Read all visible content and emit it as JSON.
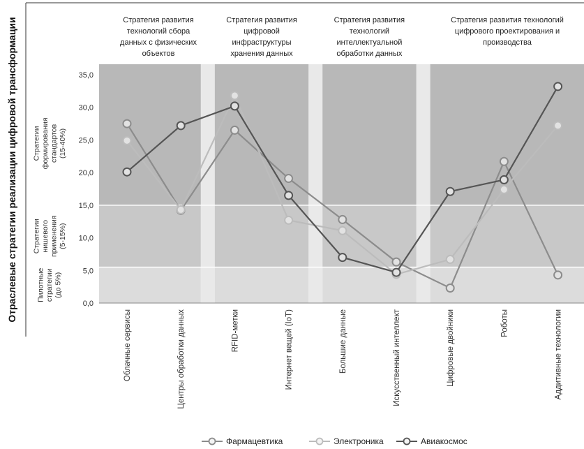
{
  "chart_data": {
    "type": "line",
    "vertical_title": "Отраслевые стратегии реализации цифровой трансформации",
    "categories": [
      "Облачные сервисы",
      "Центры обработки данных",
      "RFID-метки",
      "Интернет вещей (IoT)",
      "Большие данные",
      "Искусственный интеллект",
      "Цифровые двойники",
      "Роботы",
      "Аддитивные технологии"
    ],
    "category_groups": [
      {
        "label_lines": [
          "Стратегия развития",
          "технологий сбора",
          "данных с физических",
          "объектов"
        ],
        "categories": [
          0,
          1
        ]
      },
      {
        "label_lines": [
          "Стратегия развития",
          "цифровой",
          "инфраструктуры",
          "хранения данных"
        ],
        "categories": [
          2,
          3
        ]
      },
      {
        "label_lines": [
          "Стратегия развития",
          "технологий",
          "интеллектуальной",
          "обработки данных"
        ],
        "categories": [
          4,
          5
        ]
      },
      {
        "label_lines": [
          "Стратегия развития технологий",
          "цифрового проектирования и",
          "производства"
        ],
        "categories": [
          6,
          7,
          8
        ]
      }
    ],
    "bands": [
      {
        "from": 0,
        "to": 5.5,
        "label_lines": [
          "Пилотные",
          "стратегии",
          "(до 5%)"
        ],
        "color": "#dcdcdc"
      },
      {
        "from": 5.5,
        "to": 15,
        "label_lines": [
          "Стратегии",
          "нишевого",
          "применения",
          "(5-15%)"
        ],
        "color": "#c8c8c8"
      },
      {
        "from": 15,
        "to": 35,
        "label_lines": [
          "Стратегии",
          "формирования",
          "стандартов",
          "(15-40%)"
        ],
        "color": "#b8b8b8"
      }
    ],
    "y_ticks": [
      "0,0",
      "5,0",
      "10,0",
      "15,0",
      "20,0",
      "25,0",
      "30,0",
      "35,0"
    ],
    "ylim": [
      0,
      35
    ],
    "series": [
      {
        "name": "Фармацевтика",
        "color": "#8c8c8c",
        "values": [
          27.5,
          14.2,
          26.5,
          19.1,
          12.8,
          6.3,
          2.3,
          21.7,
          4.3
        ]
      },
      {
        "name": "Электроника",
        "color": "#bcbcbc",
        "values": [
          24.9,
          14.3,
          31.8,
          12.7,
          11.1,
          4.4,
          6.7,
          17.4,
          27.2
        ]
      },
      {
        "name": "Авиакосмос",
        "color": "#555555",
        "values": [
          20.1,
          27.2,
          30.2,
          16.5,
          7.0,
          4.7,
          17.1,
          18.9,
          33.2
        ]
      }
    ]
  }
}
